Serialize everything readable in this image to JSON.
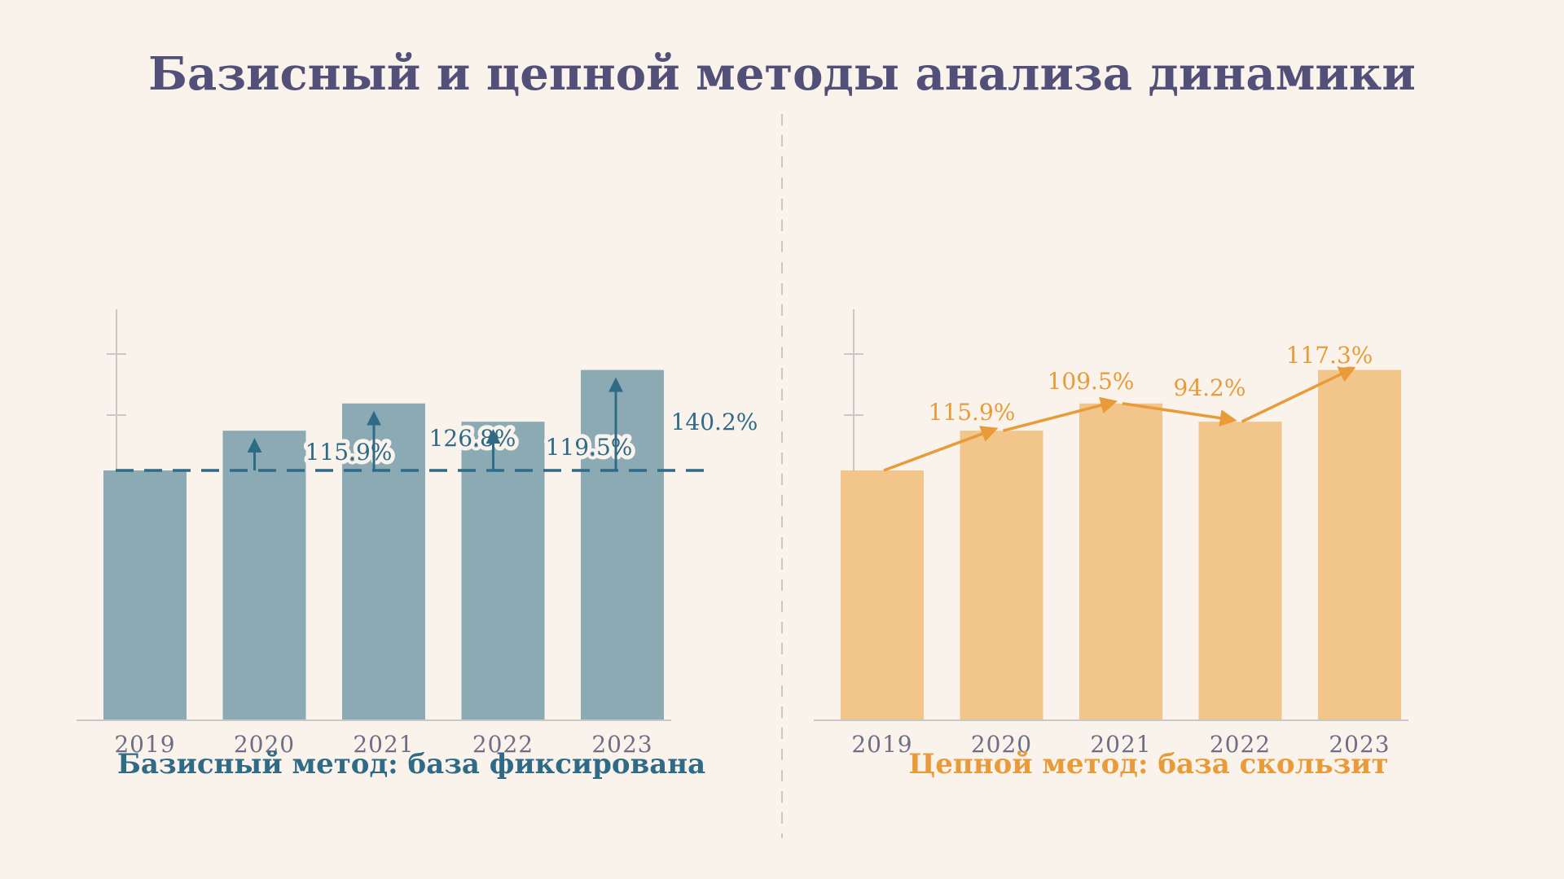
{
  "title": "Базисный и цепной методы анализа динамики",
  "colors": {
    "background": "#f9f3ec",
    "title": "#524f78",
    "basis_bar": "#89a8b3",
    "basis_accent": "#2f6a86",
    "chain_bar": "#f2c589",
    "chain_accent": "#e89b38",
    "axis": "#c8c8c8",
    "tick_label": "#6e6e86"
  },
  "chart_data": [
    {
      "type": "bar",
      "caption": "Базисный метод: база фиксирована",
      "categories": [
        "2019",
        "2020",
        "2021",
        "2022",
        "2023"
      ],
      "values": [
        100,
        115.9,
        126.8,
        119.5,
        140.2
      ],
      "annotations": [
        "",
        "115.9%",
        "126.8%",
        "119.5%",
        "140.2%"
      ],
      "baseline": 100,
      "ylim": [
        0,
        160
      ],
      "grid": false
    },
    {
      "type": "bar",
      "caption": "Цепной метод: база скользит",
      "categories": [
        "2019",
        "2020",
        "2021",
        "2022",
        "2023"
      ],
      "values": [
        100,
        115.9,
        126.8,
        119.5,
        140.2
      ],
      "annotations": [
        "",
        "115.9%",
        "109.5%",
        "94.2%",
        "117.3%"
      ],
      "ylim": [
        0,
        160
      ],
      "grid": false
    }
  ]
}
